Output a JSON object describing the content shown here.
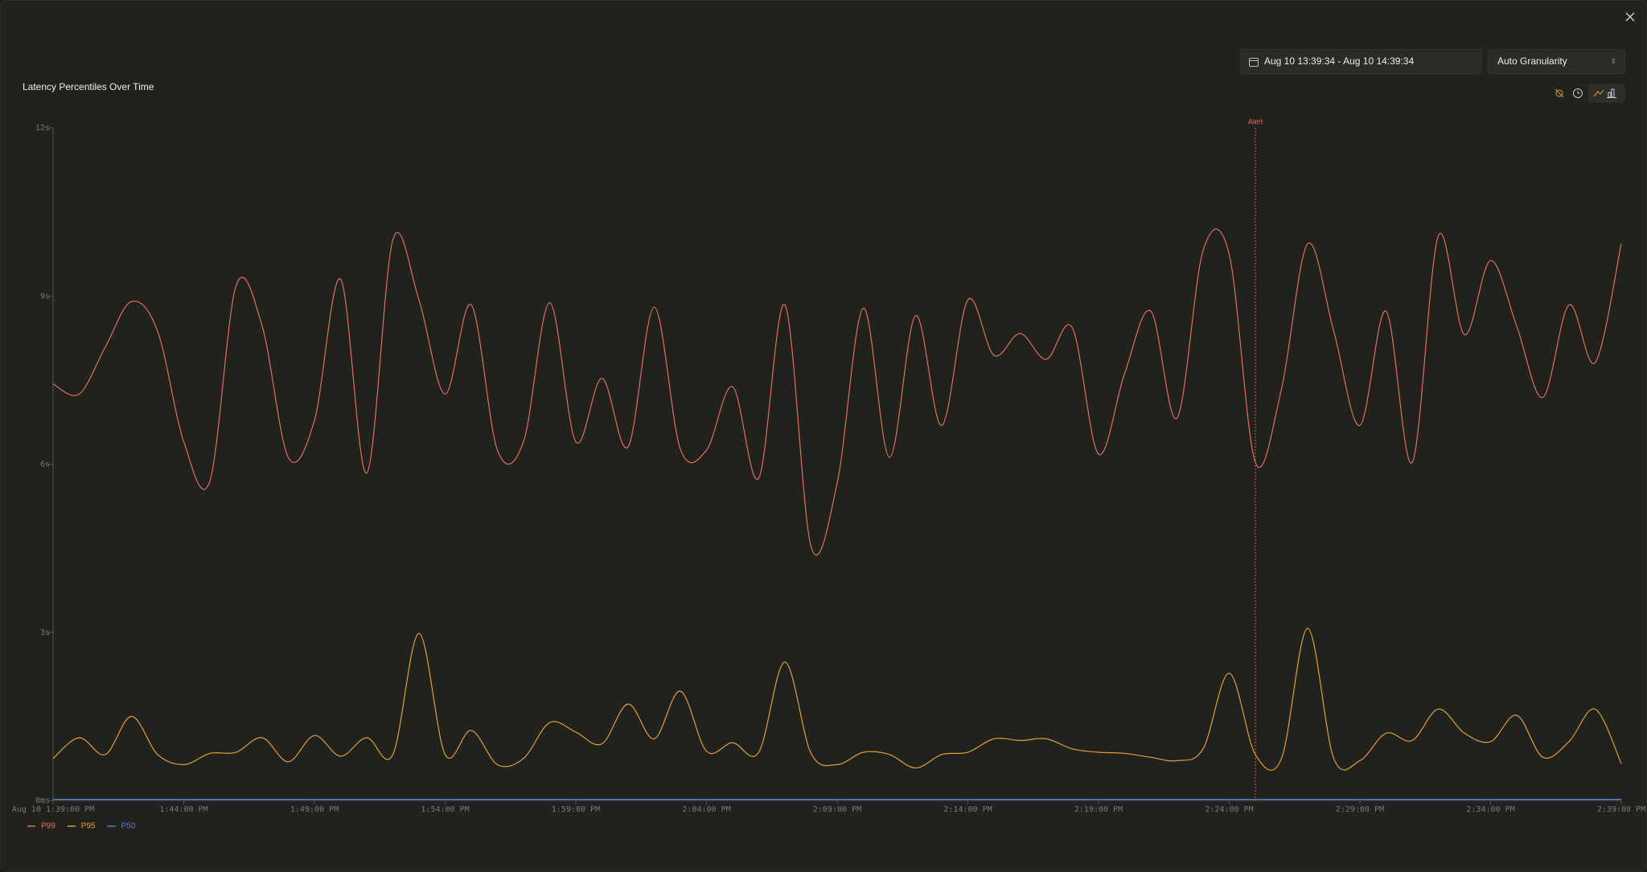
{
  "controls": {
    "date_range": "Aug 10 13:39:34 - Aug 10 14:39:34",
    "granularity": "Auto Granularity"
  },
  "chart_data": {
    "type": "line",
    "title": "Latency Percentiles Over Time",
    "x": [
      "1:39:00 PM",
      "1:40:00 PM",
      "1:41:00 PM",
      "1:42:00 PM",
      "1:43:00 PM",
      "1:44:00 PM",
      "1:45:00 PM",
      "1:46:00 PM",
      "1:47:00 PM",
      "1:48:00 PM",
      "1:49:00 PM",
      "1:50:00 PM",
      "1:51:00 PM",
      "1:52:00 PM",
      "1:53:00 PM",
      "1:54:00 PM",
      "1:55:00 PM",
      "1:56:00 PM",
      "1:57:00 PM",
      "1:58:00 PM",
      "1:59:00 PM",
      "2:00:00 PM",
      "2:01:00 PM",
      "2:02:00 PM",
      "2:03:00 PM",
      "2:04:00 PM",
      "2:05:00 PM",
      "2:06:00 PM",
      "2:07:00 PM",
      "2:08:00 PM",
      "2:09:00 PM",
      "2:10:00 PM",
      "2:11:00 PM",
      "2:12:00 PM",
      "2:13:00 PM",
      "2:14:00 PM",
      "2:15:00 PM",
      "2:16:00 PM",
      "2:17:00 PM",
      "2:18:00 PM",
      "2:19:00 PM",
      "2:20:00 PM",
      "2:21:00 PM",
      "2:22:00 PM",
      "2:23:00 PM",
      "2:24:00 PM",
      "2:25:00 PM",
      "2:26:00 PM",
      "2:27:00 PM",
      "2:28:00 PM",
      "2:29:00 PM",
      "2:30:00 PM",
      "2:31:00 PM",
      "2:32:00 PM",
      "2:33:00 PM",
      "2:34:00 PM",
      "2:35:00 PM",
      "2:36:00 PM",
      "2:37:00 PM",
      "2:38:00 PM",
      "2:39:00 PM"
    ],
    "series": [
      {
        "name": "P99",
        "color": "#e0705c",
        "values": [
          7.43,
          7.25,
          8.09,
          8.9,
          8.37,
          6.4,
          5.7,
          9.18,
          8.46,
          6.12,
          6.78,
          9.3,
          5.84,
          10.0,
          8.93,
          7.25,
          8.84,
          6.25,
          6.4,
          8.88,
          6.4,
          7.53,
          6.31,
          8.8,
          6.27,
          6.25,
          7.38,
          5.75,
          8.84,
          4.53,
          5.66,
          8.78,
          6.12,
          8.65,
          6.69,
          8.93,
          7.94,
          8.33,
          7.87,
          8.43,
          6.18,
          7.62,
          8.73,
          6.82,
          9.81,
          9.74,
          6.03,
          7.34,
          9.93,
          8.37,
          6.69,
          8.73,
          6.03,
          10.07,
          8.31,
          9.63,
          8.46,
          7.19,
          8.84,
          7.81,
          9.93
        ]
      },
      {
        "name": "P95",
        "color": "#e0a030",
        "values": [
          0.75,
          1.12,
          0.82,
          1.5,
          0.82,
          0.64,
          0.84,
          0.86,
          1.12,
          0.69,
          1.16,
          0.79,
          1.12,
          0.82,
          2.98,
          0.82,
          1.25,
          0.64,
          0.75,
          1.39,
          1.22,
          1.01,
          1.72,
          1.1,
          1.95,
          0.88,
          1.03,
          0.86,
          2.47,
          0.84,
          0.64,
          0.86,
          0.82,
          0.58,
          0.82,
          0.86,
          1.1,
          1.07,
          1.1,
          0.92,
          0.86,
          0.84,
          0.77,
          0.71,
          0.92,
          2.27,
          0.82,
          0.75,
          3.07,
          0.75,
          0.71,
          1.2,
          1.07,
          1.63,
          1.2,
          1.05,
          1.52,
          0.77,
          1.05,
          1.63,
          0.66
        ]
      },
      {
        "name": "P50",
        "color": "#5b7fd6",
        "values": [
          0.02,
          0.02,
          0.02,
          0.02,
          0.02,
          0.02,
          0.02,
          0.02,
          0.02,
          0.02,
          0.02,
          0.02,
          0.02,
          0.02,
          0.02,
          0.02,
          0.02,
          0.02,
          0.02,
          0.02,
          0.02,
          0.02,
          0.02,
          0.02,
          0.02,
          0.02,
          0.02,
          0.02,
          0.02,
          0.02,
          0.02,
          0.02,
          0.02,
          0.02,
          0.02,
          0.02,
          0.02,
          0.02,
          0.02,
          0.02,
          0.02,
          0.02,
          0.02,
          0.02,
          0.02,
          0.02,
          0.02,
          0.02,
          0.02,
          0.02,
          0.02,
          0.02,
          0.02,
          0.02,
          0.02,
          0.02,
          0.02,
          0.02,
          0.02,
          0.02,
          0.02
        ]
      }
    ],
    "ylim": [
      0,
      12
    ],
    "yticks": [
      {
        "value": 0,
        "label": "0ms"
      },
      {
        "value": 3,
        "label": "3s"
      },
      {
        "value": 6,
        "label": "6s"
      },
      {
        "value": 9,
        "label": "9s"
      },
      {
        "value": 12,
        "label": "12s"
      }
    ],
    "xticks": [
      "Aug 10 1:39:00 PM",
      "1:44:00 PM",
      "1:49:00 PM",
      "1:54:00 PM",
      "1:59:00 PM",
      "2:04:00 PM",
      "2:09:00 PM",
      "2:14:00 PM",
      "2:19:00 PM",
      "2:24:00 PM",
      "2:29:00 PM",
      "2:34:00 PM",
      "2:39:00 PM"
    ],
    "annotations": [
      {
        "text": "Alert",
        "x": "2:25:00 PM",
        "color": "#e0705c"
      }
    ]
  }
}
